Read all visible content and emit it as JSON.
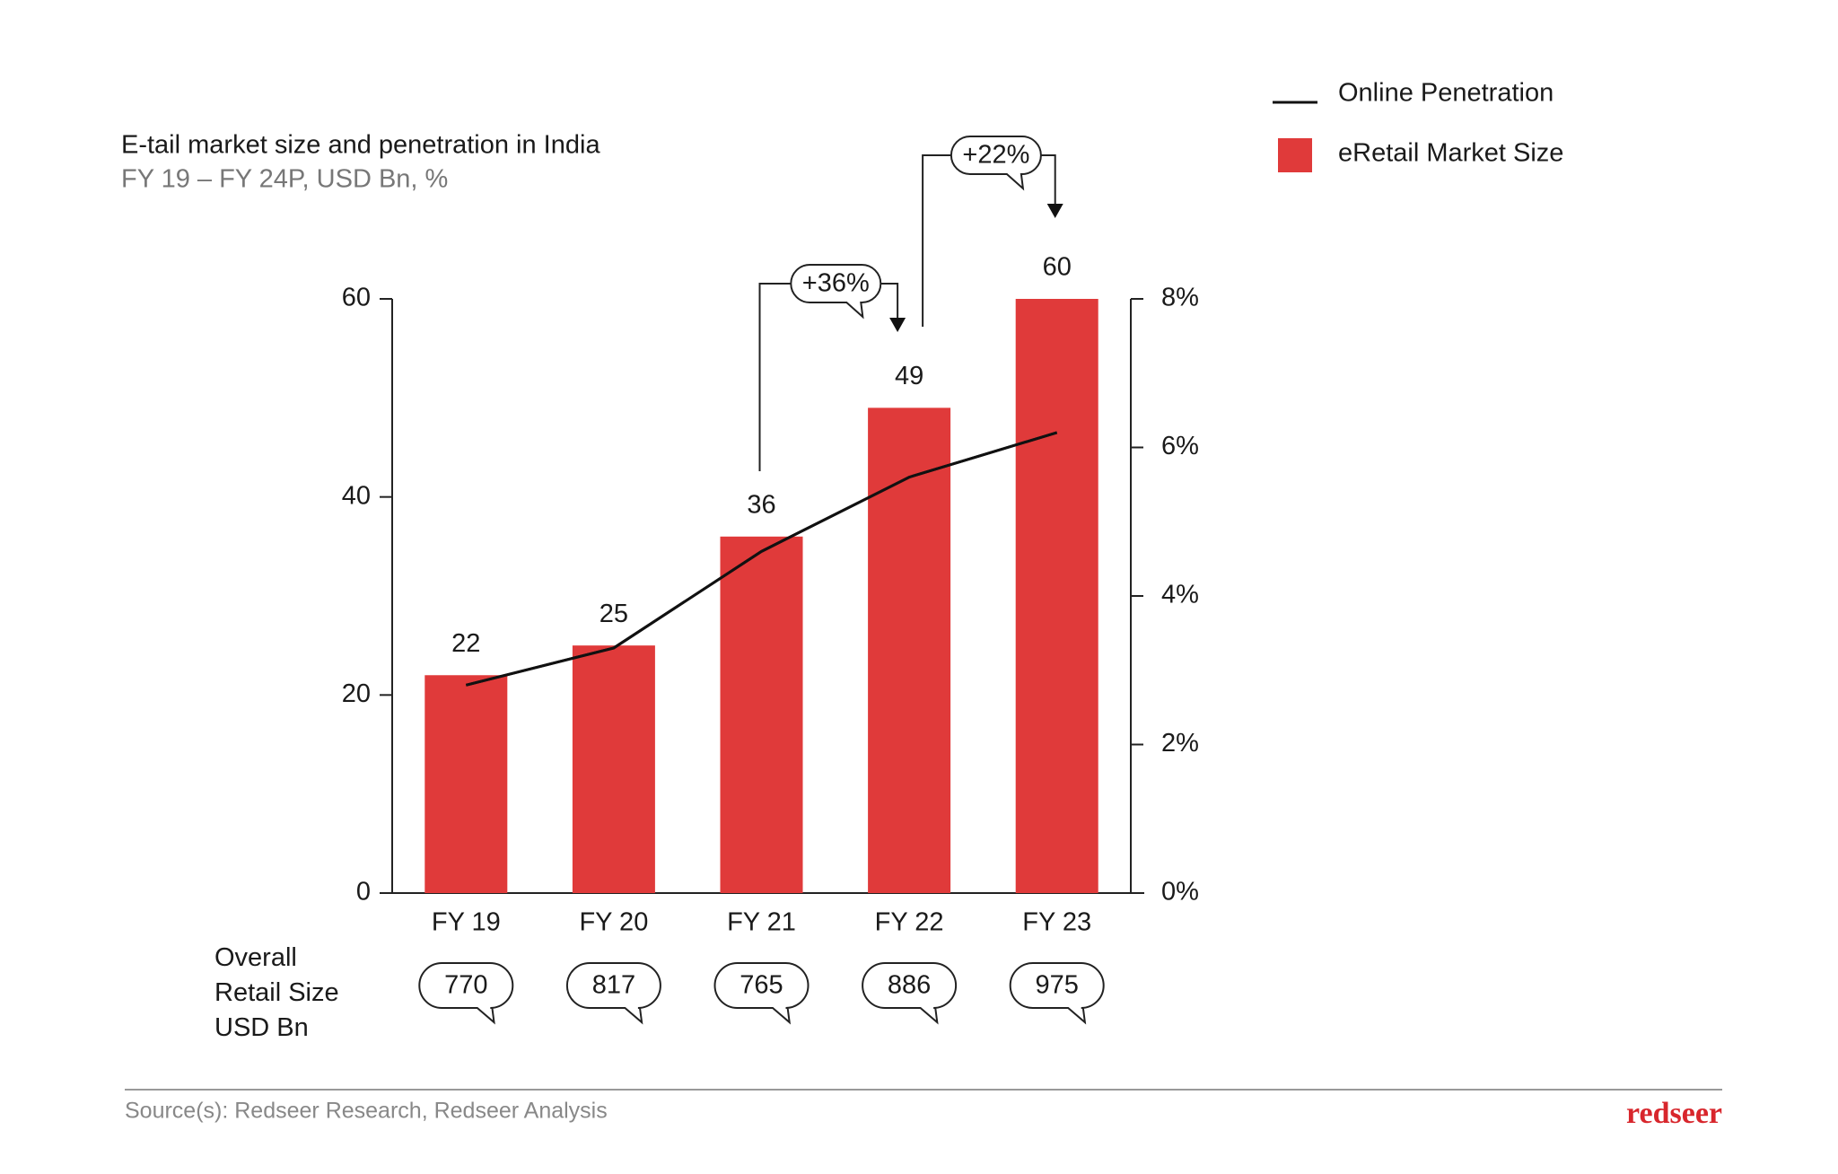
{
  "chart_data": {
    "type": "bar",
    "title": "E-tail market size and penetration in India",
    "subtitle": "FY 19 – FY 24P, USD Bn, %",
    "categories": [
      "FY 19",
      "FY 20",
      "FY 21",
      "FY 22",
      "FY 23"
    ],
    "series": [
      {
        "name": "eRetail Market Size",
        "type": "bar",
        "color": "#e03a3a",
        "values": [
          22,
          25,
          36,
          49,
          60
        ]
      },
      {
        "name": "Online Penetration",
        "type": "line",
        "axis": "y2",
        "color": "#111111",
        "values": [
          2.8,
          3.3,
          4.6,
          5.6,
          6.2
        ]
      }
    ],
    "ylim": [
      0,
      60
    ],
    "yticks": [
      0,
      20,
      40,
      60
    ],
    "y2lim": [
      0,
      8
    ],
    "y2ticks": [
      {
        "value": 0,
        "label": "0%"
      },
      {
        "value": 2,
        "label": "2%"
      },
      {
        "value": 4,
        "label": "4%"
      },
      {
        "value": 6,
        "label": "6%"
      },
      {
        "value": 8,
        "label": "8%"
      }
    ],
    "annotations": [
      "+36%",
      "+22%"
    ],
    "retail_size": {
      "label": "Overall Retail Size USD Bn",
      "values": [
        770,
        817,
        765,
        886,
        975
      ]
    },
    "source": "Source(s): Redseer Research, Redseer Analysis",
    "brand": "redseer"
  }
}
